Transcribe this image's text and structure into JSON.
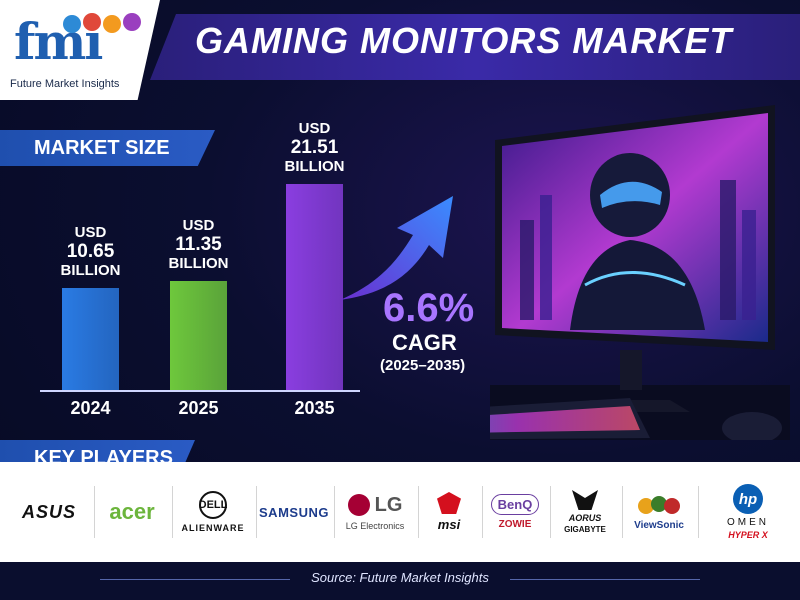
{
  "logo": {
    "mark": "fmi",
    "tagline": "Future Market Insights",
    "icons": [
      "globe-icon",
      "fire-icon",
      "flask-icon",
      "chart-icon"
    ]
  },
  "title": "GAMING MONITORS MARKET",
  "sections": {
    "market_size": "MARKET SIZE",
    "key_players": "KEY PLAYERS"
  },
  "bars": [
    {
      "year": "2024",
      "prefix": "USD",
      "value": "10.65",
      "unit": "BILLION",
      "color": "#2a7be4"
    },
    {
      "year": "2025",
      "prefix": "USD",
      "value": "11.35",
      "unit": "BILLION",
      "color": "#6ec83c"
    },
    {
      "year": "2035",
      "prefix": "USD",
      "value": "21.51",
      "unit": "BILLION",
      "color": "#8a3ee0"
    }
  ],
  "cagr": {
    "value": "6.6%",
    "label": "CAGR",
    "period": "(2025–2035)"
  },
  "players": {
    "asus": "ASUS",
    "acer": "acer",
    "dell": "DELL",
    "alienware": "ALIENWARE",
    "samsung": "SAMSUNG",
    "lg": "LG",
    "lg_sub": "LG Electronics",
    "msi": "msi",
    "benq": "BenQ",
    "zowie": "ZOWIE",
    "aorus": "AORUS",
    "gigabyte": "GIGABYTE",
    "viewsonic": "ViewSonic",
    "hp": "hp",
    "omen": "OMEN",
    "hyperx": "HYPER X"
  },
  "source": "Source: Future Market Insights",
  "chart_data": {
    "type": "bar",
    "title": "GAMING MONITORS MARKET",
    "categories": [
      "2024",
      "2025",
      "2035"
    ],
    "values": [
      10.65,
      11.35,
      21.51
    ],
    "ylabel": "",
    "xlabel": "",
    "ylim": [
      0,
      24
    ],
    "grid": false,
    "annotation": "6.6% CAGR (2025–2035)"
  }
}
